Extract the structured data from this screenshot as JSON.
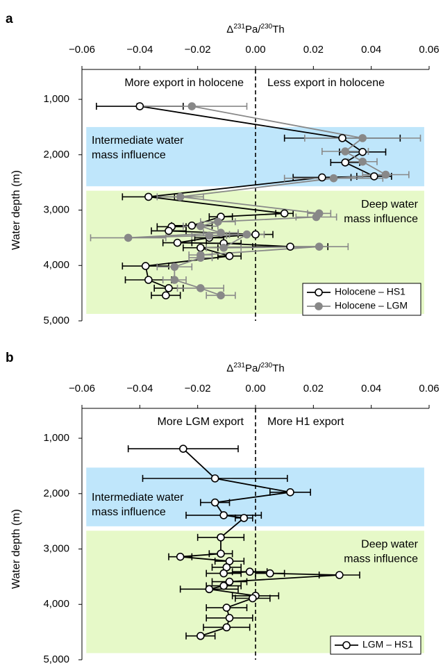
{
  "chart_data": [
    {
      "type": "profile",
      "panel_label": "a",
      "x_label": [
        "Δ",
        "231",
        "Pa/",
        "230",
        "Th"
      ],
      "y_label": "Water depth (m)",
      "xlim": [
        -0.06,
        0.06
      ],
      "xticks": [
        {
          "value": -0.06,
          "label": "−0.06"
        },
        {
          "value": -0.04,
          "label": "−0.04"
        },
        {
          "value": -0.02,
          "label": "−0.02"
        },
        {
          "value": 0,
          "label": "0.00"
        },
        0.02,
        0.04,
        0.06
      ],
      "ylim": [
        5000,
        460
      ],
      "yticks": [
        {
          "value": 1000,
          "label": "1,000"
        },
        {
          "value": 2000,
          "label": "2,000"
        },
        {
          "value": 3000,
          "label": "3,000"
        },
        {
          "value": 4000,
          "label": "4,000"
        },
        {
          "value": 5000,
          "label": "5,000"
        }
      ],
      "zero_line": 0,
      "annotations": {
        "left": "More export in holocene",
        "right": "Less export in holocene"
      },
      "regions": [
        {
          "label": [
            "Intermediate water",
            "mass influence"
          ],
          "depth": [
            1500,
            2570
          ],
          "xspan": [
            -0.0585,
            0.0583
          ],
          "color": "#bfe6fb",
          "label_side": "left",
          "label_anchor": "top"
        },
        {
          "label": [
            "Deep water",
            "mass influence"
          ],
          "depth": [
            2650,
            4875
          ],
          "xspan": [
            -0.0585,
            0.0583
          ],
          "color": "#e6f9c8",
          "label_side": "right",
          "label_anchor": "top"
        }
      ],
      "legend": "lower right",
      "series": [
        {
          "name": "Holocene – HS1",
          "color": "#000000",
          "marker_fill": "#ffffff",
          "values": [
            -0.04,
            0.03,
            0.037,
            0.031,
            0.041,
            0.023,
            -0.037,
            0.01,
            -0.012,
            -0.022,
            -0.029,
            -0.03,
            0.0,
            -0.016,
            -0.027,
            -0.011,
            0.012,
            -0.019,
            -0.009,
            -0.038,
            -0.037,
            -0.03,
            -0.031
          ],
          "depth": [
            1125,
            1700,
            1950,
            2140,
            2390,
            2410,
            2760,
            3060,
            3120,
            3280,
            3300,
            3375,
            3440,
            3500,
            3590,
            3600,
            3660,
            3680,
            3830,
            4010,
            4260,
            4410,
            4540
          ],
          "errors": [
            0.015,
            0.02,
            0.008,
            0.005,
            0.006,
            0.01,
            0.009,
            0.003,
            0.004,
            0.007,
            0.005,
            0.006,
            0.006,
            0.005,
            0.005,
            0.006,
            0.013,
            0.006,
            0.004,
            0.008,
            0.008,
            0.005,
            0.005
          ]
        },
        {
          "name": "Holocene – LGM",
          "color": "#888888",
          "marker_fill": "#888888",
          "values": [
            -0.022,
            0.037,
            0.031,
            0.037,
            0.045,
            0.027,
            -0.026,
            0.022,
            0.021,
            -0.013,
            -0.019,
            -0.012,
            -0.044,
            -0.016,
            -0.003,
            -0.011,
            0.022,
            -0.019,
            -0.019,
            -0.028,
            -0.028,
            -0.019,
            -0.012
          ],
          "depth": [
            1125,
            1700,
            1940,
            2125,
            2360,
            2425,
            2760,
            3060,
            3125,
            3210,
            3290,
            3410,
            3500,
            3460,
            3440,
            3680,
            3660,
            3810,
            3860,
            4025,
            4260,
            4410,
            4540
          ],
          "errors": [
            0.019,
            0.02,
            0.008,
            0.005,
            0.008,
            0.017,
            0.008,
            0.004,
            0.007,
            0.006,
            0.006,
            0.006,
            0.013,
            0.006,
            0.006,
            0.006,
            0.01,
            0.004,
            0.004,
            0.006,
            0.004,
            0.008,
            0.005
          ]
        }
      ]
    },
    {
      "type": "profile",
      "panel_label": "b",
      "x_label": [
        "Δ",
        "231",
        "Pa/",
        "230",
        "Th"
      ],
      "y_label": "Water depth (m)",
      "xlim": [
        -0.06,
        0.06
      ],
      "xticks": [
        {
          "value": -0.06,
          "label": "−0.06"
        },
        {
          "value": -0.04,
          "label": "−0.04"
        },
        {
          "value": -0.02,
          "label": "−0.02"
        },
        {
          "value": 0,
          "label": "0.00"
        },
        0.02,
        0.04,
        0.06
      ],
      "ylim": [
        5000,
        460
      ],
      "yticks": [
        {
          "value": 1000,
          "label": "1,000"
        },
        {
          "value": 2000,
          "label": "2,000"
        },
        {
          "value": 3000,
          "label": "3,000"
        },
        {
          "value": 4000,
          "label": "4,000"
        },
        {
          "value": 5000,
          "label": "5,000"
        }
      ],
      "zero_line": 0,
      "annotations": {
        "left": "More LGM export",
        "right": "More H1 export"
      },
      "regions": [
        {
          "label": [
            "Intermediate water",
            "mass influence"
          ],
          "depth": [
            1530,
            2590
          ],
          "xspan": [
            -0.0585,
            0.0583
          ],
          "color": "#bfe6fb",
          "label_side": "left",
          "label_anchor": "bottom"
        },
        {
          "label": [
            "Deep water",
            "mass influence"
          ],
          "depth": [
            2670,
            4880
          ],
          "xspan": [
            -0.0585,
            0.0583
          ],
          "color": "#e6f9c8",
          "label_side": "right",
          "label_anchor": "top"
        }
      ],
      "legend": "lower right",
      "series": [
        {
          "name": "LGM – HS1",
          "color": "#000000",
          "marker_fill": "#ffffff",
          "values": [
            -0.025,
            -0.014,
            0.012,
            -0.014,
            -0.011,
            -0.004,
            -0.012,
            -0.012,
            -0.026,
            -0.009,
            -0.01,
            -0.011,
            -0.002,
            0.005,
            0.029,
            -0.009,
            -0.011,
            -0.016,
            0.0,
            -0.001,
            -0.01,
            -0.009,
            -0.01,
            -0.019
          ],
          "depth": [
            1190,
            1725,
            1975,
            2160,
            2390,
            2440,
            2790,
            3085,
            3140,
            3220,
            3330,
            3440,
            3410,
            3440,
            3470,
            3590,
            3665,
            3725,
            3845,
            3890,
            4060,
            4245,
            4415,
            4570
          ],
          "errors": [
            0.019,
            0.025,
            0.007,
            0.005,
            0.013,
            0.003,
            0.008,
            0.004,
            0.004,
            0.005,
            0.005,
            0.006,
            0.006,
            0.005,
            0.007,
            0.006,
            0.006,
            0.01,
            0.008,
            0.006,
            0.007,
            0.008,
            0.008,
            0.005
          ]
        }
      ]
    }
  ]
}
